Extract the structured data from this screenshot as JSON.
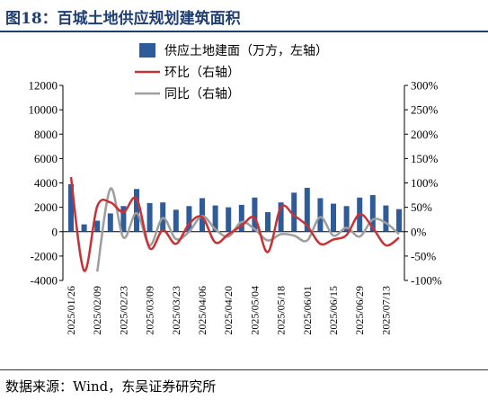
{
  "header": {
    "title": "图18：百城土地供应规划建筑面积"
  },
  "footer": {
    "source": "数据来源：Wind，东吴证券研究所"
  },
  "colors": {
    "title": "#1f3f73",
    "bar": "#2e5b9a",
    "mom_line": "#c83236",
    "yoy_line": "#9e9e9e"
  },
  "chart_data": {
    "type": "bar",
    "legend": {
      "position": "top",
      "items": [
        {
          "label": "供应土地建面（万方，左轴）",
          "kind": "bar",
          "series": "area"
        },
        {
          "label": "环比（右轴）",
          "kind": "line",
          "series": "mom"
        },
        {
          "label": "同比（右轴）",
          "kind": "line",
          "series": "yoy"
        }
      ]
    },
    "x_ticks": [
      "2025/01/26",
      "2025/02/09",
      "2025/02/23",
      "2025/03/09",
      "2025/03/23",
      "2025/04/06",
      "2025/04/20",
      "2025/05/04",
      "2025/05/18",
      "2025/06/01",
      "2025/06/15",
      "2025/06/29",
      "2025/07/13"
    ],
    "left_axis": {
      "min": -4000,
      "max": 12000,
      "step": 2000,
      "tick_labels": [
        "-4000",
        "-2000",
        "0",
        "2000",
        "4000",
        "6000",
        "8000",
        "10000",
        "12000"
      ]
    },
    "right_axis": {
      "min": -100,
      "max": 300,
      "step": 50,
      "unit": "%",
      "tick_labels": [
        "-100%",
        "-50%",
        "0%",
        "50%",
        "100%",
        "150%",
        "200%",
        "250%",
        "300%"
      ]
    },
    "series": [
      {
        "id": "area",
        "type": "bar",
        "axis": "left",
        "values": [
          3900,
          600,
          900,
          1500,
          2100,
          3500,
          2350,
          2400,
          1800,
          2100,
          2750,
          2150,
          2000,
          2200,
          2800,
          1600,
          2400,
          3200,
          3600,
          2750,
          2300,
          2100,
          2800,
          3000,
          2150,
          1850
        ]
      },
      {
        "id": "mom",
        "type": "line",
        "axis": "right",
        "values": [
          112,
          -80,
          52,
          60,
          40,
          68,
          -34,
          3,
          -25,
          16,
          30,
          -22,
          -5,
          12,
          28,
          -42,
          50,
          33,
          12,
          -25,
          -16,
          -7,
          36,
          8,
          -28,
          -12
        ]
      },
      {
        "id": "yoy",
        "type": "line",
        "axis": "right",
        "values": [
          98,
          null,
          -82,
          88,
          -12,
          38,
          -28,
          28,
          -15,
          0,
          32,
          5,
          -10,
          20,
          5,
          -18,
          -5,
          -8,
          -18,
          30,
          -8,
          8,
          -10,
          25,
          18,
          -5
        ]
      }
    ]
  }
}
